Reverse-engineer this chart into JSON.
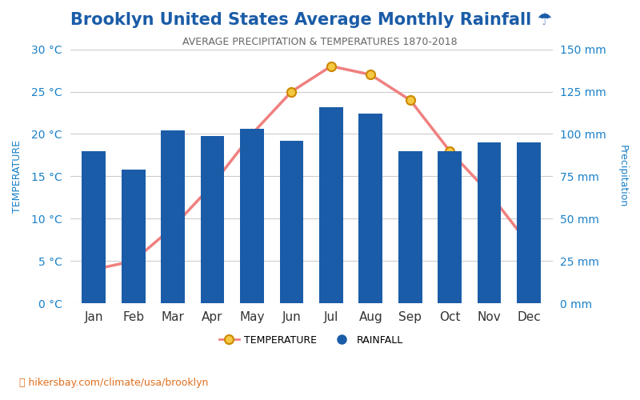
{
  "title": "Brooklyn United States Average Monthly Rainfall ☂",
  "subtitle": "AVERAGE PRECIPITATION & TEMPERATURES 1870-2018",
  "months": [
    "Jan",
    "Feb",
    "Mar",
    "Apr",
    "May",
    "Jun",
    "Jul",
    "Aug",
    "Sep",
    "Oct",
    "Nov",
    "Dec"
  ],
  "temperature_c": [
    4,
    5,
    9,
    14,
    20,
    25,
    28,
    27,
    24,
    18,
    13,
    7
  ],
  "rainfall_mm": [
    90,
    79,
    102,
    99,
    103,
    96,
    116,
    112,
    90,
    90,
    95,
    95
  ],
  "bar_color": "#1a5ca8",
  "line_color": "#f08080",
  "marker_color": "#f5c842",
  "marker_edge_color": "#cc8800",
  "temp_ylim": [
    0,
    30
  ],
  "rain_ylim": [
    0,
    150
  ],
  "temp_ticks": [
    0,
    5,
    10,
    15,
    20,
    25,
    30
  ],
  "rain_ticks": [
    0,
    25,
    50,
    75,
    100,
    125,
    150
  ],
  "temp_tick_labels": [
    "0 °C",
    "5 °C",
    "10 °C",
    "15 °C",
    "20 °C",
    "25 °C",
    "30 °C"
  ],
  "rain_tick_labels": [
    "0 mm",
    "25 mm",
    "50 mm",
    "75 mm",
    "100 mm",
    "125 mm",
    "150 mm"
  ],
  "ylabel_left": "TEMPERATURE",
  "ylabel_right": "Precipitation",
  "title_color": "#1a5ca8",
  "subtitle_color": "#666666",
  "axis_label_color": "#1a80c8",
  "watermark": "hikersbay.com/climate/usa/brooklyn",
  "background_color": "#ffffff",
  "grid_color": "#cccccc"
}
